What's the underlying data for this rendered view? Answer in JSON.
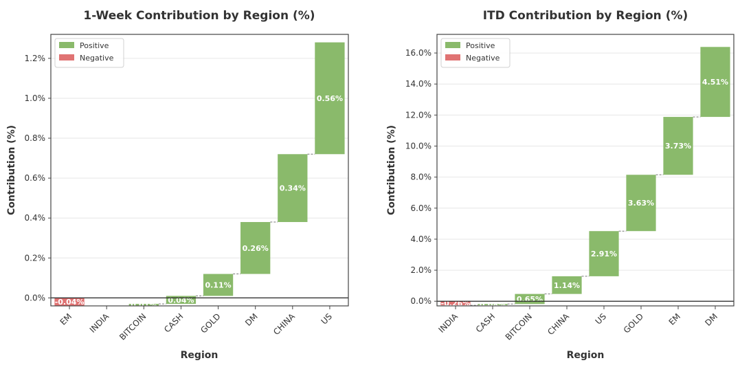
{
  "colors": {
    "positive": "#8aba6b",
    "negative": "#e07373",
    "grid": "#e6e6e6",
    "frame": "#444444",
    "connector": "#777777"
  },
  "chart_data": [
    {
      "type": "bar",
      "subtype": "waterfall",
      "title": "1-Week Contribution by Region (%)",
      "xlabel": "Region",
      "ylabel": "Contribution (%)",
      "ylim": [
        -0.04,
        1.32
      ],
      "yticks": [
        0.0,
        0.2,
        0.4,
        0.6,
        0.8,
        1.0,
        1.2
      ],
      "ytick_labels": [
        "0.0%",
        "0.2%",
        "0.4%",
        "0.6%",
        "0.8%",
        "1.0%",
        "1.2%"
      ],
      "categories": [
        "EM",
        "INDIA",
        "BITCOIN",
        "CASH",
        "GOLD",
        "DM",
        "CHINA",
        "US"
      ],
      "values": [
        -0.04,
        0.0,
        0.01,
        0.04,
        0.11,
        0.26,
        0.34,
        0.56
      ],
      "value_labels": [
        "-0.04%",
        "-0.00%",
        "0.01%",
        "0.04%",
        "0.11%",
        "0.26%",
        "0.34%",
        "0.56%"
      ],
      "legend": {
        "position": "top-left",
        "entries": [
          "Positive",
          "Negative"
        ]
      },
      "grid": true
    },
    {
      "type": "bar",
      "subtype": "waterfall",
      "title": "ITD Contribution by Region (%)",
      "xlabel": "Region",
      "ylabel": "Contribution (%)",
      "ylim": [
        -0.3,
        17.2
      ],
      "yticks": [
        0,
        2,
        4,
        6,
        8,
        10,
        12,
        14,
        16
      ],
      "ytick_labels": [
        "0.0%",
        "2.0%",
        "4.0%",
        "6.0%",
        "8.0%",
        "10.0%",
        "12.0%",
        "14.0%",
        "16.0%"
      ],
      "categories": [
        "INDIA",
        "CASH",
        "BITCOIN",
        "CHINA",
        "US",
        "GOLD",
        "EM",
        "DM"
      ],
      "values": [
        -0.26,
        0.08,
        0.65,
        1.14,
        2.91,
        3.63,
        3.73,
        4.51
      ],
      "value_labels": [
        "-0.26%",
        "0.08%",
        "0.65%",
        "1.14%",
        "2.91%",
        "3.63%",
        "3.73%",
        "4.51%"
      ],
      "legend": {
        "position": "top-left",
        "entries": [
          "Positive",
          "Negative"
        ]
      },
      "grid": true
    }
  ]
}
